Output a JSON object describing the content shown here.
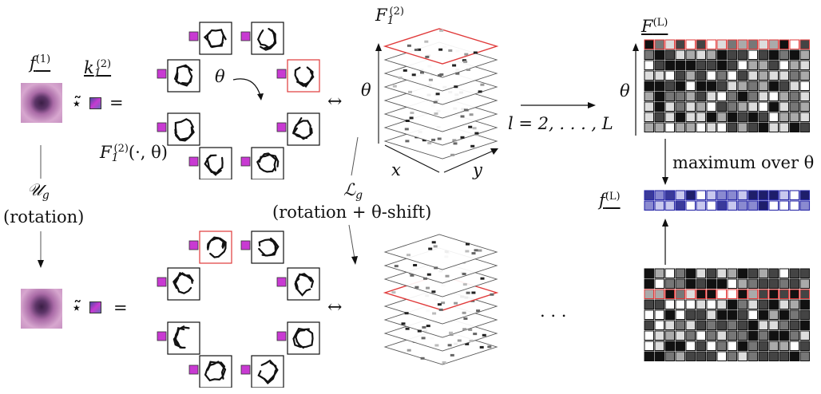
{
  "top_row": {
    "input_symbol": "f",
    "input_superscript": "(1)",
    "kernel_symbol": "k",
    "kernel_subscript": "1",
    "kernel_superscript": "(2)",
    "conv_operator": "⋆̃",
    "equals": "=",
    "rotation_angle": "θ",
    "feature_map_label_f": "F",
    "feature_map_label_sub": "1",
    "feature_map_label_sup": "(2)",
    "feature_map_label_args": "(·, θ)",
    "stack_label_f": "F",
    "stack_label_sub": "1",
    "stack_label_sup": "(2)",
    "equivalence": "↔",
    "stack_axis_theta": "θ",
    "stack_axis_x": "x",
    "stack_axis_y": "y",
    "layers_range": "l = 2, . . . , L",
    "output_label_f": "F",
    "output_label_sup": "(L)",
    "output_axis_theta": "θ"
  },
  "middle": {
    "input_transform": "𝒰",
    "input_transform_sub": "g",
    "input_transform_desc": "(rotation)",
    "feature_transform": "ℒ",
    "feature_transform_sub": "g",
    "feature_transform_desc": "(rotation + θ-shift)",
    "pooling_desc": "maximum over θ",
    "pooled_label_f": "f",
    "pooled_label_sup": "(L)"
  },
  "bottom_row": {
    "conv_operator": "⋆̃",
    "equals": "=",
    "equivalence": "↔",
    "ellipsis": ". . ."
  },
  "colors": {
    "highlight_red": "#e03a3a",
    "pooled_blue": "#2a2aa8",
    "tissue_pink": "#c48ab8",
    "kernel_magenta": "#c83ad2"
  }
}
